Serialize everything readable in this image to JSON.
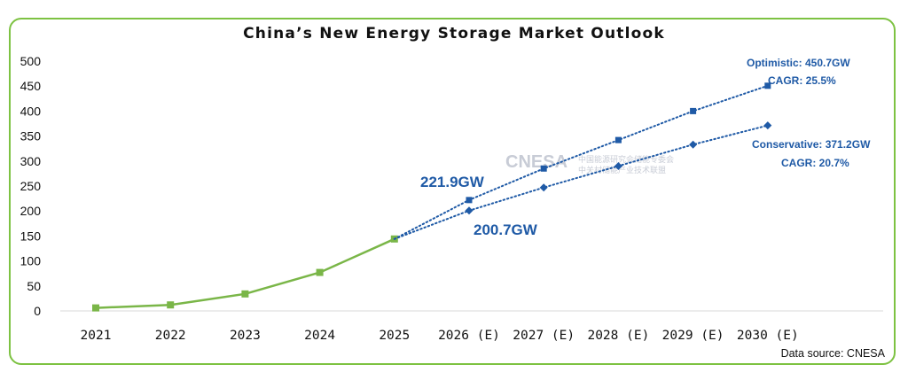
{
  "chart_data": {
    "type": "line",
    "title": "China’s New Energy Storage Market Outlook",
    "categories": [
      "2021",
      "2022",
      "2023",
      "2024",
      "2025",
      "2026 (E)",
      "2027 (E)",
      "2028 (E)",
      "2029 (E)",
      "2030 (E)"
    ],
    "ylim": [
      0,
      500
    ],
    "yticks": [
      0,
      50,
      100,
      150,
      200,
      250,
      300,
      350,
      400,
      450,
      500
    ],
    "grid": false,
    "legend": "none",
    "series": [
      {
        "values": [
          6,
          12,
          34,
          77,
          144,
          null,
          null,
          null,
          null,
          null
        ],
        "color": "#7ab648",
        "marker": "square",
        "style": "solid"
      },
      {
        "values": [
          null,
          null,
          null,
          null,
          144,
          221.9,
          285,
          342,
          400,
          450.7
        ],
        "color": "#1f5aa6",
        "marker": "square",
        "style": "dotted"
      },
      {
        "values": [
          null,
          null,
          null,
          null,
          144,
          200.7,
          247,
          290,
          333,
          371.2
        ],
        "color": "#1f5aa6",
        "marker": "diamond",
        "style": "dotted"
      }
    ],
    "annotations": {
      "opt_2026": "221.9GW",
      "con_2026": "200.7GW",
      "opt_label": "Optimistic: 450.7GW",
      "opt_cagr": "CAGR:  25.5%",
      "con_label": "Conservative: 371.2GW",
      "con_cagr": "CAGR:  20.7%"
    },
    "watermark": {
      "text": "CNESA",
      "cn_line1": "中国能源研究会储能专委会",
      "cn_line2": "中关村储能产业技术联盟"
    }
  },
  "source": "Data source: CNESA"
}
